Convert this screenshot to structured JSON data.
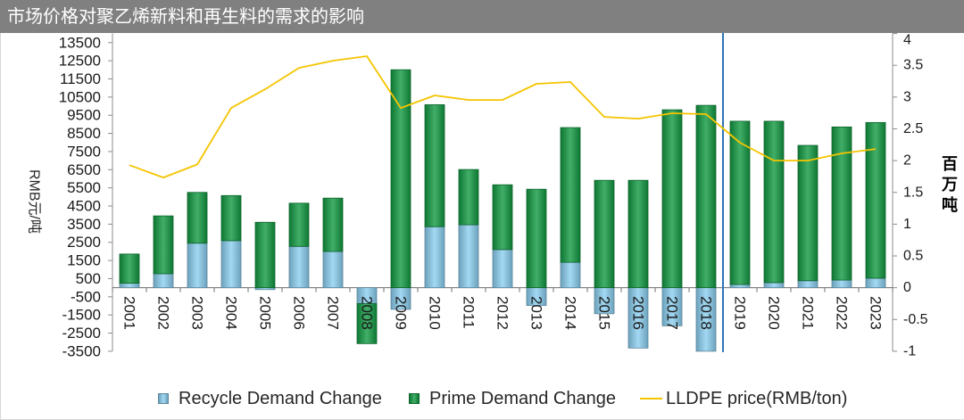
{
  "colors": {
    "title_bar": "#808080",
    "title_text": "#ffffff"
  },
  "chart_data": {
    "type": "bar",
    "stacked": true,
    "title": "市场价格对聚乙烯新料和再生料的需求的影响",
    "categories": [
      "2001",
      "2002",
      "2003",
      "2004",
      "2005",
      "2006",
      "2007",
      "2008",
      "2009",
      "2010",
      "2011",
      "2012",
      "2013",
      "2014",
      "2015",
      "2016",
      "2017",
      "2018",
      "2019",
      "2020",
      "2021",
      "2022",
      "2023"
    ],
    "y_left": {
      "label": "RMB元/吨",
      "range": [
        -3500,
        14000
      ],
      "ticks": [
        13500,
        12500,
        11500,
        10500,
        9500,
        8500,
        7500,
        6500,
        5500,
        4500,
        3500,
        2500,
        1500,
        500,
        -500,
        -1500,
        -2500,
        -3500
      ]
    },
    "y_right": {
      "label": "百万吨",
      "range": [
        -1,
        4
      ],
      "ticks": [
        4,
        3.5,
        3,
        2.5,
        2,
        1.5,
        1,
        0.5,
        0,
        -0.5,
        -1
      ]
    },
    "grid": false,
    "legend": "bottom",
    "series": [
      {
        "name": "Recycle Demand Change",
        "type": "bar",
        "axis": "right",
        "color": "#8ccff0",
        "values": [
          0.07,
          0.22,
          0.7,
          0.74,
          -0.03,
          0.65,
          0.57,
          -0.25,
          -0.34,
          0.96,
          0.99,
          0.6,
          -0.28,
          0.4,
          -0.41,
          -0.95,
          -0.6,
          -1.0,
          0.05,
          0.08,
          0.11,
          0.12,
          0.15
        ]
      },
      {
        "name": "Prime Demand Change",
        "type": "bar",
        "axis": "right",
        "color": "#129a42",
        "values": [
          0.46,
          0.91,
          0.8,
          0.71,
          1.03,
          0.68,
          0.84,
          -0.63,
          3.43,
          1.92,
          0.87,
          1.02,
          1.55,
          2.12,
          1.69,
          1.69,
          2.8,
          2.87,
          2.57,
          2.54,
          2.13,
          2.41,
          2.45
        ]
      },
      {
        "name": "LLDPE price(RMB/ton)",
        "type": "line",
        "axis": "left",
        "color": "#f5c400",
        "values": [
          6750,
          6070,
          6790,
          9900,
          10930,
          12110,
          12500,
          12750,
          9900,
          10590,
          10340,
          10340,
          11230,
          11330,
          9410,
          9310,
          9610,
          9560,
          7990,
          7000,
          7000,
          7400,
          7640
        ]
      }
    ],
    "reference_line": {
      "orientation": "vertical",
      "after_category": "2018",
      "color": "#2e75b6"
    }
  }
}
